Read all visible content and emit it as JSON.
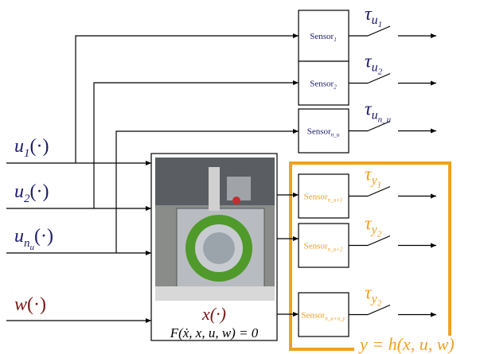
{
  "inputs": [
    {
      "symbol": "u",
      "subscript": "1",
      "argument": "(·)"
    },
    {
      "symbol": "u",
      "subscript": "2",
      "argument": "(·)"
    },
    {
      "symbol": "u",
      "subscript": "n",
      "subsubscript": "u",
      "argument": "(·)"
    }
  ],
  "disturbance": {
    "symbol": "w",
    "argument": "(·)"
  },
  "system": {
    "state": "x(·)",
    "equation": "F(ẋ, x, u, w) = 0"
  },
  "input_sensors": [
    {
      "name": "Sensor",
      "subscript": "1",
      "delay": "τ",
      "delay_subscript": "u",
      "delay_subsubscript": "1"
    },
    {
      "name": "Sensor",
      "subscript": "2",
      "delay": "τ",
      "delay_subscript": "u",
      "delay_subsubscript": "2"
    },
    {
      "name": "Sensor",
      "subscript": "n_u",
      "delay": "τ",
      "delay_subscript": "u",
      "delay_subsubscript": "n_u"
    }
  ],
  "output_sensors": [
    {
      "name": "Sensor",
      "subscript": "n_u+1",
      "delay": "τ",
      "delay_subscript": "y",
      "delay_subsubscript": "1"
    },
    {
      "name": "Sensor",
      "subscript": "n_u+2",
      "delay": "τ",
      "delay_subscript": "y",
      "delay_subsubscript": "2"
    },
    {
      "name": "Sensor",
      "subscript": "n_u+n_y",
      "delay": "τ",
      "delay_subscript": "y",
      "delay_subsubscript": "2"
    }
  ],
  "output_map": "y = h(x, u, w)"
}
